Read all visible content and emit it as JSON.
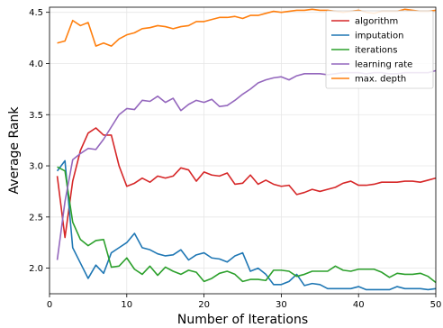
{
  "chart_data": {
    "type": "line",
    "title": "",
    "xlabel": "Number of Iterations",
    "ylabel": "Average Rank",
    "xlim": [
      0,
      50
    ],
    "ylim": [
      1.75,
      4.55
    ],
    "xticks": [
      0,
      10,
      20,
      30,
      40,
      50
    ],
    "yticks": [
      2.0,
      2.5,
      3.0,
      3.5,
      4.0,
      4.5
    ],
    "xtick_labels": [
      "0",
      "10",
      "20",
      "30",
      "40",
      "50"
    ],
    "ytick_labels": [
      "2.0",
      "2.5",
      "3.0",
      "3.5",
      "4.0",
      "4.5"
    ],
    "grid": true,
    "legend_position": "top-right",
    "x": [
      1,
      2,
      3,
      4,
      5,
      6,
      7,
      8,
      9,
      10,
      11,
      12,
      13,
      14,
      15,
      16,
      17,
      18,
      19,
      20,
      21,
      22,
      23,
      24,
      25,
      26,
      27,
      28,
      29,
      30,
      31,
      32,
      33,
      34,
      35,
      36,
      37,
      38,
      39,
      40,
      41,
      42,
      43,
      44,
      45,
      46,
      47,
      48,
      49,
      50
    ],
    "series": [
      {
        "name": "algorithm",
        "color": "#d62728",
        "values": [
          2.9,
          2.3,
          2.85,
          3.15,
          3.32,
          3.37,
          3.3,
          3.3,
          3.0,
          2.8,
          2.83,
          2.88,
          2.84,
          2.9,
          2.88,
          2.9,
          2.98,
          2.96,
          2.85,
          2.94,
          2.91,
          2.9,
          2.93,
          2.82,
          2.83,
          2.91,
          2.82,
          2.86,
          2.82,
          2.8,
          2.81,
          2.72,
          2.74,
          2.77,
          2.75,
          2.77,
          2.79,
          2.83,
          2.85,
          2.81,
          2.81,
          2.82,
          2.84,
          2.84,
          2.84,
          2.85,
          2.85,
          2.84,
          2.86,
          2.88
        ]
      },
      {
        "name": "imputation",
        "color": "#1f77b4",
        "values": [
          2.95,
          3.05,
          2.2,
          2.05,
          1.9,
          2.03,
          1.95,
          2.15,
          2.2,
          2.25,
          2.34,
          2.2,
          2.18,
          2.14,
          2.12,
          2.13,
          2.18,
          2.08,
          2.13,
          2.15,
          2.1,
          2.09,
          2.06,
          2.12,
          2.15,
          1.97,
          2.0,
          1.94,
          1.84,
          1.84,
          1.87,
          1.94,
          1.83,
          1.85,
          1.84,
          1.8,
          1.8,
          1.8,
          1.8,
          1.82,
          1.79,
          1.79,
          1.79,
          1.79,
          1.82,
          1.8,
          1.8,
          1.8,
          1.79,
          1.8
        ]
      },
      {
        "name": "iterations",
        "color": "#2ca02c",
        "values": [
          2.99,
          2.95,
          2.45,
          2.28,
          2.22,
          2.27,
          2.28,
          2.01,
          2.02,
          2.1,
          1.99,
          1.94,
          2.02,
          1.93,
          2.01,
          1.97,
          1.94,
          1.98,
          1.96,
          1.87,
          1.9,
          1.95,
          1.97,
          1.94,
          1.87,
          1.89,
          1.89,
          1.88,
          1.98,
          1.98,
          1.97,
          1.92,
          1.94,
          1.97,
          1.97,
          1.97,
          2.02,
          1.98,
          1.97,
          1.99,
          1.99,
          1.99,
          1.96,
          1.91,
          1.95,
          1.94,
          1.94,
          1.95,
          1.92,
          1.86
        ]
      },
      {
        "name": "learning rate",
        "color": "#9467bd",
        "values": [
          2.08,
          2.65,
          3.06,
          3.12,
          3.17,
          3.16,
          3.26,
          3.38,
          3.5,
          3.56,
          3.55,
          3.64,
          3.63,
          3.68,
          3.62,
          3.66,
          3.54,
          3.6,
          3.64,
          3.62,
          3.65,
          3.58,
          3.59,
          3.64,
          3.7,
          3.75,
          3.81,
          3.84,
          3.86,
          3.87,
          3.84,
          3.88,
          3.9,
          3.9,
          3.9,
          3.89,
          3.9,
          3.91,
          3.91,
          3.91,
          3.9,
          3.91,
          3.91,
          3.9,
          3.9,
          3.91,
          3.91,
          3.91,
          3.91,
          3.93
        ]
      },
      {
        "name": "max. depth",
        "color": "#ff7f0e",
        "values": [
          4.2,
          4.22,
          4.42,
          4.37,
          4.4,
          4.17,
          4.2,
          4.17,
          4.24,
          4.28,
          4.3,
          4.34,
          4.35,
          4.37,
          4.36,
          4.34,
          4.36,
          4.37,
          4.41,
          4.41,
          4.43,
          4.45,
          4.45,
          4.46,
          4.44,
          4.47,
          4.47,
          4.49,
          4.51,
          4.5,
          4.51,
          4.52,
          4.52,
          4.53,
          4.52,
          4.52,
          4.51,
          4.5,
          4.51,
          4.52,
          4.5,
          4.49,
          4.51,
          4.51,
          4.51,
          4.53,
          4.52,
          4.51,
          4.51,
          4.52
        ]
      }
    ]
  }
}
